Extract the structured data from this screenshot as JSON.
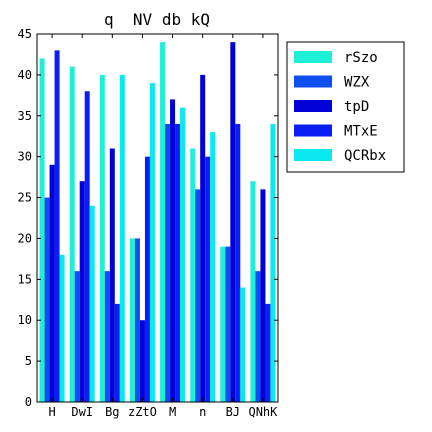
{
  "chart_data": {
    "type": "bar",
    "title": "q  NV db kQ",
    "xlabel": "",
    "ylabel": "",
    "ylim": [
      0,
      45
    ],
    "yticks": [
      0,
      5,
      10,
      15,
      20,
      25,
      30,
      35,
      40,
      45
    ],
    "categories": [
      "H",
      "DwI",
      "Bg",
      "zZtO",
      "M",
      "n",
      "BJ",
      "QNhK"
    ],
    "legend_position": "top-right-outside",
    "grid": false,
    "series": [
      {
        "name": "rSzo",
        "color": "#1ef0d8",
        "values": [
          42,
          41,
          40,
          20,
          44,
          31,
          19,
          27
        ]
      },
      {
        "name": "WZX",
        "color": "#0f4ff0",
        "values": [
          25,
          16,
          16,
          20,
          34,
          26,
          19,
          16
        ]
      },
      {
        "name": "tpD",
        "color": "#0000d8",
        "values": [
          29,
          27,
          31,
          10,
          37,
          40,
          44,
          26
        ]
      },
      {
        "name": "MTxE",
        "color": "#0a1ef5",
        "values": [
          43,
          38,
          12,
          30,
          34,
          30,
          34,
          12
        ]
      },
      {
        "name": "QCRbx",
        "color": "#0ae8f0",
        "values": [
          18,
          24,
          40,
          39,
          36,
          33,
          14,
          34
        ]
      }
    ]
  }
}
